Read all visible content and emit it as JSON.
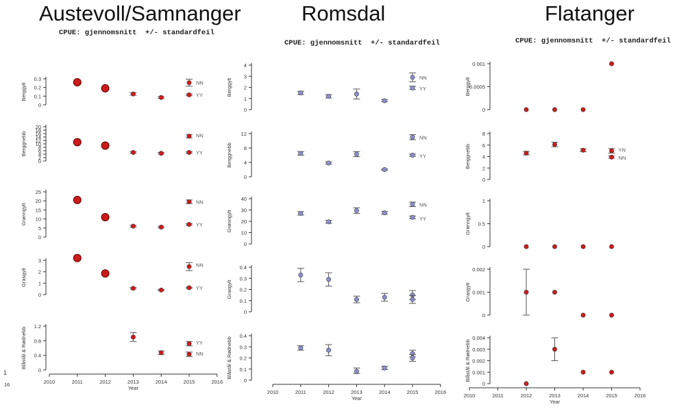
{
  "columns": [
    {
      "title": "Austevoll/Samnanger",
      "subtitle": "CPUE: gjennomsnitt  +/- standardfeil"
    },
    {
      "title": "Romsdal",
      "subtitle": "CPUE: gjennomsnitt  +/- standardfeil"
    },
    {
      "title": "Flatanger",
      "subtitle": "CPUE: gjennomsnitt  +/- standardfeil"
    }
  ],
  "colors": {
    "red": "#cc1b1b",
    "blue": "#8c8ed0",
    "axis": "#333333",
    "err": "#555555"
  },
  "chart_data": [
    {
      "type": "scatter",
      "column": 0,
      "row": 0,
      "ylabel": "Berggylt",
      "ylim": [
        0,
        0.3
      ],
      "yticks": [
        "0",
        "0.1",
        "0.2",
        "0.3"
      ],
      "series": [
        {
          "name": "",
          "color": "red",
          "big": true,
          "points": [
            {
              "x": 2011,
              "y": 0.26
            },
            {
              "x": 2012,
              "y": 0.19
            }
          ]
        },
        {
          "name": "NN",
          "color": "red",
          "points": [
            {
              "x": 2015,
              "y": 0.255,
              "lo": 0.215,
              "hi": 0.295
            }
          ]
        },
        {
          "name": "YY",
          "color": "red",
          "points": [
            {
              "x": 2013,
              "y": 0.125,
              "lo": 0.11,
              "hi": 0.14
            },
            {
              "x": 2014,
              "y": 0.085,
              "lo": 0.075,
              "hi": 0.095
            },
            {
              "x": 2015,
              "y": 0.115,
              "lo": 0.105,
              "hi": 0.125
            }
          ]
        }
      ],
      "legend": [
        {
          "text": "NN",
          "y": 0.255
        },
        {
          "text": "YY",
          "y": 0.115
        }
      ]
    },
    {
      "type": "scatter",
      "column": 0,
      "row": 1,
      "ylabel": "Berggnebb",
      "ylim": [
        0,
        20
      ],
      "yticks": [
        "0",
        "2",
        "4",
        "6",
        "8",
        "10",
        "12",
        "14",
        "16",
        "18",
        "20"
      ],
      "series": [
        {
          "name": "",
          "color": "red",
          "big": true,
          "points": [
            {
              "x": 2011,
              "y": 11
            },
            {
              "x": 2012,
              "y": 9
            }
          ]
        },
        {
          "name": "NN",
          "color": "red",
          "points": [
            {
              "x": 2015,
              "y": 14.5,
              "lo": 13.5,
              "hi": 15.5
            }
          ]
        },
        {
          "name": "YY",
          "color": "red",
          "points": [
            {
              "x": 2013,
              "y": 5,
              "lo": 4.5,
              "hi": 5.5
            },
            {
              "x": 2014,
              "y": 4.5,
              "lo": 4,
              "hi": 5
            },
            {
              "x": 2015,
              "y": 5,
              "lo": 4.6,
              "hi": 5.4
            }
          ]
        }
      ],
      "legend": [
        {
          "text": "NN",
          "y": 15
        },
        {
          "text": "YY",
          "y": 5
        }
      ]
    },
    {
      "type": "scatter",
      "column": 0,
      "row": 2,
      "ylabel": "Grønngylt",
      "ylim": [
        0,
        25
      ],
      "yticks": [
        "0",
        "5",
        "10",
        "15",
        "20",
        "25"
      ],
      "series": [
        {
          "name": "",
          "color": "red",
          "big": true,
          "points": [
            {
              "x": 2011,
              "y": 20.5
            },
            {
              "x": 2012,
              "y": 11
            }
          ]
        },
        {
          "name": "NN",
          "color": "red",
          "points": [
            {
              "x": 2015,
              "y": 19.5,
              "lo": 18.5,
              "hi": 20.5
            }
          ]
        },
        {
          "name": "YY",
          "color": "red",
          "points": [
            {
              "x": 2013,
              "y": 6,
              "lo": 5.5,
              "hi": 6.5
            },
            {
              "x": 2014,
              "y": 5.5,
              "lo": 5,
              "hi": 6
            },
            {
              "x": 2015,
              "y": 7,
              "lo": 6.6,
              "hi": 7.4
            }
          ]
        }
      ],
      "legend": [
        {
          "text": "NN",
          "y": 19.5
        },
        {
          "text": "YY",
          "y": 7
        }
      ]
    },
    {
      "type": "scatter",
      "column": 0,
      "row": 3,
      "ylabel": "Grasgylt",
      "ylim": [
        0,
        3
      ],
      "yticks": [
        "0",
        "1",
        "2",
        "3"
      ],
      "series": [
        {
          "name": "",
          "color": "red",
          "big": true,
          "points": [
            {
              "x": 2011,
              "y": 3.2
            },
            {
              "x": 2012,
              "y": 1.85
            }
          ]
        },
        {
          "name": "NN",
          "color": "red",
          "points": [
            {
              "x": 2015,
              "y": 2.45,
              "lo": 2.1,
              "hi": 2.8
            }
          ]
        },
        {
          "name": "YY",
          "color": "red",
          "points": [
            {
              "x": 2013,
              "y": 0.55,
              "lo": 0.48,
              "hi": 0.62
            },
            {
              "x": 2014,
              "y": 0.4,
              "lo": 0.35,
              "hi": 0.45
            },
            {
              "x": 2015,
              "y": 0.6,
              "lo": 0.55,
              "hi": 0.65
            }
          ]
        }
      ],
      "legend": [
        {
          "text": "NN",
          "y": 2.6
        },
        {
          "text": "YY",
          "y": 0.6
        }
      ]
    },
    {
      "type": "scatter",
      "column": 0,
      "row": 4,
      "ylabel": "Blåstål & Rødnebb",
      "ylim": [
        0,
        1.2
      ],
      "yticks": [
        "0",
        "0.4",
        "0.8",
        "1.2"
      ],
      "xlabel": "Year",
      "xticks": [
        "2010",
        "2011",
        "2012",
        "2013",
        "2014",
        "2015",
        "2016"
      ],
      "series": [
        {
          "name": "YY",
          "color": "red",
          "points": [
            {
              "x": 2013,
              "y": 0.9,
              "lo": 0.78,
              "hi": 1.02
            },
            {
              "x": 2015,
              "y": 0.72,
              "lo": 0.66,
              "hi": 0.78
            }
          ]
        },
        {
          "name": "NN",
          "color": "red",
          "points": [
            {
              "x": 2014,
              "y": 0.47,
              "lo": 0.42,
              "hi": 0.52
            },
            {
              "x": 2015,
              "y": 0.43,
              "lo": 0.37,
              "hi": 0.49
            }
          ]
        }
      ],
      "legend": [
        {
          "text": "YY",
          "y": 0.75
        },
        {
          "text": "NN",
          "y": 0.45
        }
      ]
    },
    {
      "type": "scatter",
      "column": 1,
      "row": 0,
      "ylabel": "Berggylt",
      "ylim": [
        0,
        4
      ],
      "yticks": [
        "0",
        "1",
        "2",
        "3",
        "4"
      ],
      "series": [
        {
          "name": "NN",
          "color": "blue",
          "points": [
            {
              "x": 2015,
              "y": 2.9,
              "lo": 2.5,
              "hi": 3.3
            }
          ]
        },
        {
          "name": "YY",
          "color": "blue",
          "points": [
            {
              "x": 2011,
              "y": 1.5,
              "lo": 1.35,
              "hi": 1.65
            },
            {
              "x": 2012,
              "y": 1.2,
              "lo": 1.05,
              "hi": 1.35
            },
            {
              "x": 2013,
              "y": 1.4,
              "lo": 0.95,
              "hi": 1.85
            },
            {
              "x": 2014,
              "y": 0.8,
              "lo": 0.7,
              "hi": 0.9
            },
            {
              "x": 2015,
              "y": 1.95,
              "lo": 1.8,
              "hi": 2.1
            }
          ]
        }
      ],
      "legend": [
        {
          "text": "NN",
          "y": 2.9
        },
        {
          "text": "YY",
          "y": 1.9
        }
      ]
    },
    {
      "type": "scatter",
      "column": 1,
      "row": 1,
      "ylabel": "Berggnebb",
      "ylim": [
        0,
        12
      ],
      "yticks": [
        "0",
        "4",
        "8",
        "12"
      ],
      "series": [
        {
          "name": "NN",
          "color": "blue",
          "points": [
            {
              "x": 2015,
              "y": 11,
              "lo": 10.3,
              "hi": 11.7
            }
          ]
        },
        {
          "name": "YY",
          "color": "blue",
          "points": [
            {
              "x": 2011,
              "y": 6.5,
              "lo": 6,
              "hi": 7
            },
            {
              "x": 2012,
              "y": 3.8,
              "lo": 3.5,
              "hi": 4.1
            },
            {
              "x": 2013,
              "y": 6.3,
              "lo": 5.6,
              "hi": 7
            },
            {
              "x": 2014,
              "y": 2,
              "lo": 1.85,
              "hi": 2.15
            },
            {
              "x": 2015,
              "y": 6,
              "lo": 5.7,
              "hi": 6.3
            }
          ]
        }
      ],
      "legend": [
        {
          "text": "NN",
          "y": 11
        },
        {
          "text": "YY",
          "y": 5.8
        }
      ]
    },
    {
      "type": "scatter",
      "column": 1,
      "row": 2,
      "ylabel": "Grønngylt",
      "ylim": [
        0,
        40
      ],
      "yticks": [
        "0",
        "10",
        "20",
        "30",
        "40"
      ],
      "series": [
        {
          "name": "NN",
          "color": "blue",
          "points": [
            {
              "x": 2015,
              "y": 35,
              "lo": 33,
              "hi": 37
            }
          ]
        },
        {
          "name": "YY",
          "color": "blue",
          "points": [
            {
              "x": 2011,
              "y": 27,
              "lo": 25.5,
              "hi": 28.5
            },
            {
              "x": 2012,
              "y": 19.5,
              "lo": 18.2,
              "hi": 20.8
            },
            {
              "x": 2013,
              "y": 29.5,
              "lo": 27,
              "hi": 32
            },
            {
              "x": 2014,
              "y": 27.5,
              "lo": 26.3,
              "hi": 28.7
            },
            {
              "x": 2015,
              "y": 23.5,
              "lo": 22.3,
              "hi": 24.7
            }
          ]
        }
      ],
      "legend": [
        {
          "text": "NN",
          "y": 35
        },
        {
          "text": "YY",
          "y": 22.5
        }
      ]
    },
    {
      "type": "scatter",
      "column": 1,
      "row": 3,
      "ylabel": "Grasgylt",
      "ylim": [
        0,
        0.4
      ],
      "yticks": [
        "0",
        "0.1",
        "0.2",
        "0.3",
        "0.4"
      ],
      "series": [
        {
          "name": "NN",
          "color": "blue",
          "points": [
            {
              "x": 2015,
              "y": 0.15,
              "lo": 0.11,
              "hi": 0.19
            }
          ]
        },
        {
          "name": "YY",
          "color": "blue",
          "points": [
            {
              "x": 2011,
              "y": 0.33,
              "lo": 0.27,
              "hi": 0.39
            },
            {
              "x": 2012,
              "y": 0.29,
              "lo": 0.23,
              "hi": 0.35
            },
            {
              "x": 2013,
              "y": 0.11,
              "lo": 0.08,
              "hi": 0.14
            },
            {
              "x": 2014,
              "y": 0.13,
              "lo": 0.095,
              "hi": 0.165
            },
            {
              "x": 2015,
              "y": 0.11,
              "lo": 0.075,
              "hi": 0.145
            }
          ]
        }
      ],
      "legend": []
    },
    {
      "type": "scatter",
      "column": 1,
      "row": 4,
      "ylabel": "Blåstål & Rødnebb",
      "ylim": [
        0,
        0.4
      ],
      "yticks": [
        "0",
        "0.1",
        "0.2",
        "0.3",
        "0.4"
      ],
      "xlabel": "Year",
      "xticks": [
        "2010",
        "2011",
        "2012",
        "2013",
        "2014",
        "2015",
        "2016"
      ],
      "series": [
        {
          "name": "NN",
          "color": "blue",
          "points": [
            {
              "x": 2015,
              "y": 0.24,
              "lo": 0.21,
              "hi": 0.27
            }
          ]
        },
        {
          "name": "YY",
          "color": "blue",
          "points": [
            {
              "x": 2011,
              "y": 0.29,
              "lo": 0.27,
              "hi": 0.31
            },
            {
              "x": 2012,
              "y": 0.27,
              "lo": 0.22,
              "hi": 0.32
            },
            {
              "x": 2013,
              "y": 0.08,
              "lo": 0.06,
              "hi": 0.11
            },
            {
              "x": 2014,
              "y": 0.11,
              "lo": 0.095,
              "hi": 0.125
            },
            {
              "x": 2015,
              "y": 0.2,
              "lo": 0.17,
              "hi": 0.23
            }
          ]
        }
      ],
      "legend": []
    },
    {
      "type": "scatter",
      "column": 2,
      "row": 0,
      "ylabel": "Berggylt",
      "ylim": [
        0,
        0.001
      ],
      "yticks": [
        "0",
        "0.0005",
        "0.001"
      ],
      "series": [
        {
          "name": "",
          "color": "red",
          "points": [
            {
              "x": 2012,
              "y": 0
            },
            {
              "x": 2013,
              "y": 0
            },
            {
              "x": 2014,
              "y": 0
            },
            {
              "x": 2015,
              "y": 0.001
            }
          ]
        }
      ],
      "legend": []
    },
    {
      "type": "scatter",
      "column": 2,
      "row": 1,
      "ylabel": "Berggnebb",
      "ylim": [
        0,
        8
      ],
      "yticks": [
        "0",
        "2",
        "4",
        "6",
        "8"
      ],
      "series": [
        {
          "name": "YN",
          "color": "red",
          "points": [
            {
              "x": 2012,
              "y": 4.6,
              "lo": 4.3,
              "hi": 4.9
            },
            {
              "x": 2013,
              "y": 6.1,
              "lo": 5.7,
              "hi": 6.5
            },
            {
              "x": 2014,
              "y": 5.1,
              "lo": 4.85,
              "hi": 5.35
            },
            {
              "x": 2015,
              "y": 5.0,
              "lo": 4.6,
              "hi": 5.4
            }
          ]
        },
        {
          "name": "NN",
          "color": "red",
          "points": [
            {
              "x": 2015,
              "y": 3.9,
              "lo": 3.7,
              "hi": 4.1
            }
          ]
        }
      ],
      "legend": [
        {
          "text": "YN",
          "y": 5.2
        },
        {
          "text": "NN",
          "y": 3.8
        }
      ]
    },
    {
      "type": "scatter",
      "column": 2,
      "row": 2,
      "ylabel": "Grønngylt",
      "ylim": [
        0,
        1
      ],
      "yticks": [
        "0",
        "0.5",
        "1"
      ],
      "series": [
        {
          "name": "",
          "color": "red",
          "points": [
            {
              "x": 2012,
              "y": 0
            },
            {
              "x": 2013,
              "y": 0
            },
            {
              "x": 2014,
              "y": 0
            },
            {
              "x": 2015,
              "y": 0
            }
          ]
        }
      ],
      "legend": []
    },
    {
      "type": "scatter",
      "column": 2,
      "row": 3,
      "ylabel": "Grasgylt",
      "ylim": [
        0,
        0.002
      ],
      "yticks": [
        "0",
        "0.001",
        "0.002"
      ],
      "series": [
        {
          "name": "",
          "color": "red",
          "points": [
            {
              "x": 2012,
              "y": 0.001,
              "lo": 0,
              "hi": 0.002
            },
            {
              "x": 2013,
              "y": 0.001
            },
            {
              "x": 2014,
              "y": 0
            },
            {
              "x": 2015,
              "y": 0
            }
          ]
        }
      ],
      "legend": []
    },
    {
      "type": "scatter",
      "column": 2,
      "row": 4,
      "ylabel": "Blåstål & Rødnebb",
      "ylim": [
        0,
        0.004
      ],
      "yticks": [
        "0",
        "0.001",
        "0.002",
        "0.003",
        "0.004"
      ],
      "xlabel": "Year",
      "xticks": [
        "2010",
        "2011",
        "2012",
        "2013",
        "2014",
        "2015",
        "2016"
      ],
      "series": [
        {
          "name": "",
          "color": "red",
          "points": [
            {
              "x": 2012,
              "y": 0
            },
            {
              "x": 2013,
              "y": 0.003,
              "lo": 0.002,
              "hi": 0.004
            },
            {
              "x": 2014,
              "y": 0.001
            },
            {
              "x": 2015,
              "y": 0.001
            }
          ]
        }
      ],
      "legend": []
    }
  ],
  "stray_labels": [
    "16",
    "1",
    "2016"
  ]
}
